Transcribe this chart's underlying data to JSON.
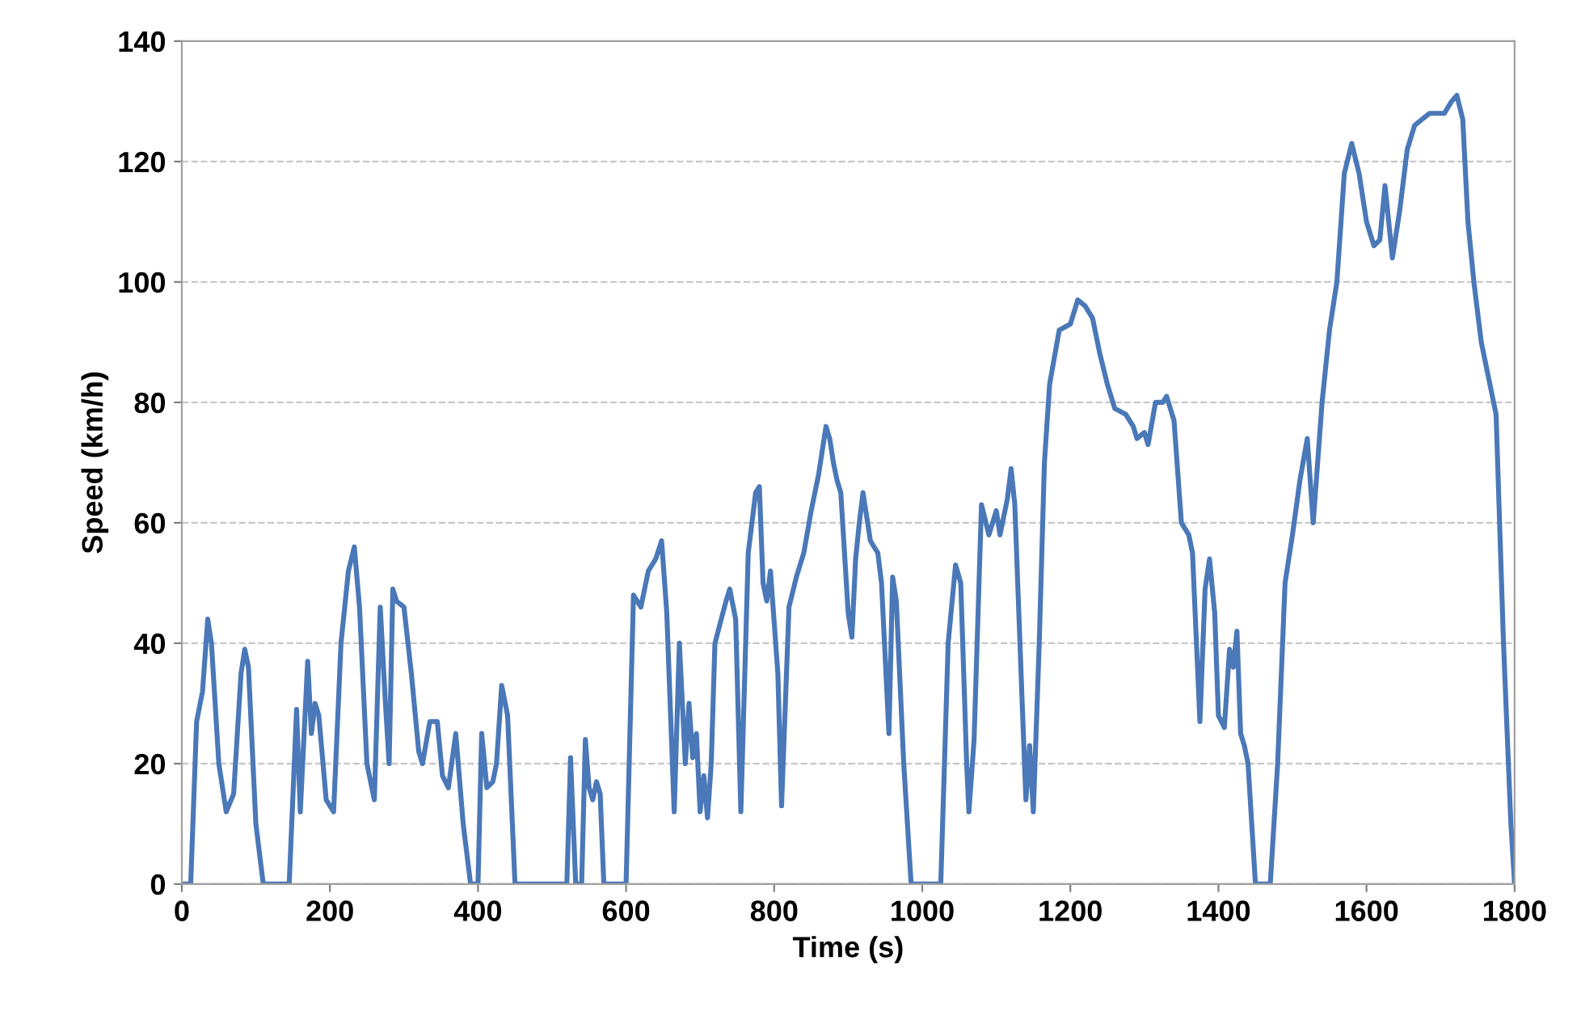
{
  "chart_data": {
    "type": "line",
    "xlabel": "Time (s)",
    "ylabel": "Speed (km/h)",
    "xlim": [
      0,
      1800
    ],
    "xticks": [
      0,
      200,
      400,
      600,
      800,
      1000,
      1200,
      1400,
      1600,
      1800
    ],
    "ylim": [
      0,
      140
    ],
    "yticks": [
      0,
      20,
      40,
      60,
      80,
      100,
      120,
      140
    ],
    "grid": "y",
    "marker": "none",
    "line_style": "solid",
    "series": [
      {
        "color": "#4a78b8",
        "x": [
          0,
          12,
          20,
          28,
          35,
          40,
          50,
          60,
          70,
          80,
          85,
          90,
          100,
          110,
          145,
          155,
          160,
          170,
          175,
          180,
          185,
          195,
          205,
          215,
          225,
          233,
          240,
          250,
          260,
          268,
          275,
          280,
          285,
          290,
          300,
          310,
          320,
          325,
          335,
          345,
          352,
          360,
          370,
          380,
          390,
          400,
          405,
          412,
          420,
          425,
          432,
          440,
          450,
          520,
          525,
          532,
          540,
          545,
          550,
          555,
          560,
          565,
          570,
          600,
          610,
          620,
          630,
          640,
          648,
          655,
          665,
          672,
          680,
          685,
          690,
          695,
          700,
          705,
          710,
          715,
          720,
          735,
          740,
          748,
          755,
          765,
          775,
          780,
          785,
          790,
          795,
          805,
          810,
          820,
          830,
          840,
          850,
          860,
          870,
          875,
          880,
          885,
          890,
          900,
          905,
          910,
          915,
          920,
          930,
          940,
          945,
          955,
          960,
          965,
          975,
          985,
          1025,
          1035,
          1045,
          1052,
          1060,
          1063,
          1070,
          1080,
          1090,
          1095,
          1100,
          1105,
          1115,
          1120,
          1125,
          1135,
          1140,
          1145,
          1150,
          1158,
          1165,
          1172,
          1185,
          1200,
          1210,
          1220,
          1230,
          1240,
          1250,
          1260,
          1275,
          1285,
          1290,
          1300,
          1305,
          1315,
          1325,
          1330,
          1340,
          1350,
          1360,
          1365,
          1375,
          1382,
          1388,
          1395,
          1400,
          1408,
          1415,
          1420,
          1425,
          1430,
          1435,
          1440,
          1450,
          1470,
          1480,
          1490,
          1500,
          1510,
          1520,
          1528,
          1540,
          1550,
          1560,
          1570,
          1580,
          1590,
          1600,
          1610,
          1618,
          1625,
          1635,
          1645,
          1655,
          1665,
          1675,
          1685,
          1695,
          1705,
          1715,
          1722,
          1730,
          1737,
          1745,
          1755,
          1765,
          1775,
          1785,
          1795,
          1800
        ],
        "values": [
          0,
          0,
          27,
          32,
          44,
          40,
          20,
          12,
          15,
          35,
          39,
          36,
          10,
          0,
          0,
          29,
          12,
          37,
          25,
          30,
          28,
          14,
          12,
          40,
          52,
          56,
          46,
          20,
          14,
          46,
          30,
          20,
          49,
          47,
          46,
          35,
          22,
          20,
          27,
          27,
          18,
          16,
          25,
          10,
          0,
          0,
          25,
          16,
          17,
          20,
          33,
          28,
          0,
          0,
          21,
          0,
          0,
          24,
          16,
          14,
          17,
          15,
          0,
          0,
          48,
          46,
          52,
          54,
          57,
          45,
          12,
          40,
          20,
          30,
          21,
          25,
          12,
          18,
          11,
          20,
          40,
          47,
          49,
          44,
          12,
          55,
          65,
          66,
          50,
          47,
          52,
          35,
          13,
          46,
          51,
          55,
          62,
          68,
          76,
          74,
          70,
          67,
          65,
          45,
          41,
          54,
          60,
          65,
          57,
          55,
          50,
          25,
          51,
          47,
          20,
          0,
          0,
          40,
          53,
          50,
          20,
          12,
          24,
          63,
          58,
          60,
          62,
          58,
          64,
          69,
          63,
          30,
          14,
          23,
          12,
          40,
          70,
          83,
          92,
          93,
          97,
          96,
          94,
          88,
          83,
          79,
          78,
          76,
          74,
          75,
          73,
          80,
          80,
          81,
          77,
          60,
          58,
          55,
          27,
          49,
          54,
          45,
          28,
          26,
          39,
          36,
          42,
          25,
          23,
          20,
          0,
          0,
          20,
          50,
          58,
          67,
          74,
          60,
          80,
          92,
          100,
          118,
          123,
          118,
          110,
          106,
          107,
          116,
          104,
          112,
          122,
          126,
          127,
          128,
          128,
          128,
          130,
          131,
          127,
          110,
          100,
          90,
          84,
          78,
          40,
          10,
          0
        ]
      }
    ]
  }
}
